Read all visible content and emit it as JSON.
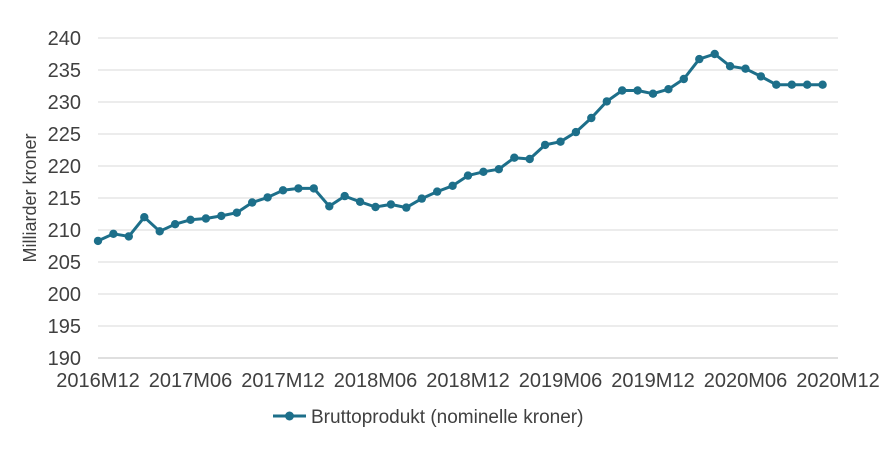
{
  "chart_data": {
    "type": "line",
    "title": "",
    "xlabel": "",
    "ylabel": "Milliarder kroner",
    "ylim": [
      190,
      240
    ],
    "yticks": [
      190,
      195,
      200,
      205,
      210,
      215,
      220,
      225,
      230,
      235,
      240
    ],
    "xtick_labels": [
      "2016M12",
      "2017M06",
      "2017M12",
      "2018M06",
      "2018M12",
      "2019M06",
      "2019M12",
      "2020M06",
      "2020M12"
    ],
    "x_start": "2016M12",
    "x_end": "2020M12",
    "grid": "horizontal",
    "legend": "bottom",
    "series": [
      {
        "name": "Bruttoprodukt (nominelle kroner)",
        "color": "#1d6f8a",
        "x": [
          "2016M12",
          "2017M01",
          "2017M02",
          "2017M03",
          "2017M04",
          "2017M05",
          "2017M06",
          "2017M07",
          "2017M08",
          "2017M09",
          "2017M10",
          "2017M11",
          "2017M12",
          "2018M01",
          "2018M02",
          "2018M03",
          "2018M04",
          "2018M05",
          "2018M06",
          "2018M07",
          "2018M08",
          "2018M09",
          "2018M10",
          "2018M11",
          "2018M12",
          "2019M01",
          "2019M02",
          "2019M03",
          "2019M04",
          "2019M05",
          "2019M06",
          "2019M07",
          "2019M08",
          "2019M09",
          "2019M10",
          "2019M11",
          "2019M12",
          "2020M01",
          "2020M02",
          "2020M03",
          "2020M04",
          "2020M05",
          "2020M06",
          "2020M07",
          "2020M08",
          "2020M09",
          "2020M10",
          "2020M11"
        ],
        "values": [
          208.3,
          209.4,
          209.0,
          212.0,
          209.8,
          210.9,
          211.6,
          211.8,
          212.2,
          212.7,
          214.3,
          215.1,
          216.2,
          216.5,
          216.5,
          213.7,
          215.3,
          214.4,
          213.6,
          214.0,
          213.5,
          214.9,
          216.0,
          216.9,
          218.5,
          219.1,
          219.5,
          221.3,
          221.1,
          223.3,
          223.8,
          225.3,
          227.5,
          230.1,
          231.8,
          231.8,
          231.3,
          232.0,
          233.6,
          236.7,
          237.5,
          235.6,
          235.2,
          234.0,
          232.7,
          232.7,
          232.7,
          232.7
        ]
      }
    ]
  }
}
